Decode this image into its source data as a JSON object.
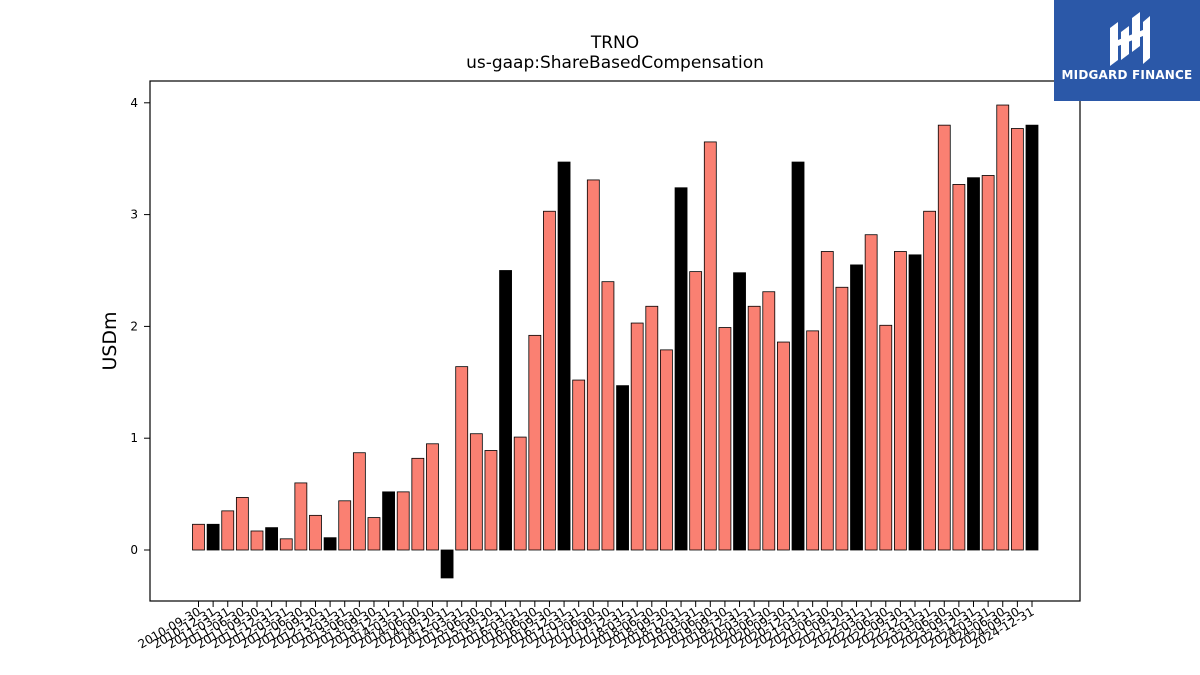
{
  "brand": {
    "name": "MIDGARD FINANCE",
    "bg_color": "#2b58a8",
    "icon": "midgard-logo-icon"
  },
  "chart_data": {
    "type": "bar",
    "title": "TRNO",
    "subtitle": "us-gaap:ShareBasedCompensation",
    "xlabel": "",
    "ylabel": "USDm",
    "ylim": [
      -0.45,
      4.2
    ],
    "yticks": [
      0,
      1,
      2,
      3,
      4
    ],
    "grid": false,
    "legend": "none",
    "colors": {
      "quarter": "#fa8072",
      "annual": "#000000"
    },
    "categories": [
      "2010-09-30",
      "2010-12-31",
      "2011-03-31",
      "2011-06-30",
      "2011-09-30",
      "2011-12-31",
      "2012-03-31",
      "2012-06-30",
      "2012-09-30",
      "2012-12-31",
      "2013-03-31",
      "2013-06-30",
      "2013-09-30",
      "2013-12-31",
      "2014-03-31",
      "2014-06-30",
      "2014-09-30",
      "2014-12-31",
      "2015-03-31",
      "2015-06-30",
      "2015-09-30",
      "2015-12-31",
      "2016-03-31",
      "2016-06-30",
      "2016-09-30",
      "2016-12-31",
      "2017-03-31",
      "2017-06-30",
      "2017-09-30",
      "2017-12-31",
      "2018-03-31",
      "2018-06-30",
      "2018-09-30",
      "2018-12-31",
      "2019-03-31",
      "2019-06-30",
      "2019-09-30",
      "2019-12-31",
      "2020-03-31",
      "2020-06-30",
      "2020-09-30",
      "2020-12-31",
      "2021-03-31",
      "2021-06-30",
      "2021-09-30",
      "2021-12-31",
      "2022-03-31",
      "2022-06-30",
      "2022-09-30",
      "2022-12-31",
      "2023-03-31",
      "2023-06-30",
      "2023-09-30",
      "2023-12-31",
      "2024-03-31",
      "2024-06-30",
      "2024-09-30",
      "2024-12-31"
    ],
    "values": [
      0.23,
      0.23,
      0.35,
      0.47,
      0.17,
      0.2,
      0.1,
      0.6,
      0.31,
      0.11,
      0.44,
      0.87,
      0.29,
      0.52,
      0.52,
      0.82,
      0.95,
      -0.25,
      1.64,
      1.04,
      0.89,
      2.5,
      1.01,
      1.92,
      3.03,
      3.47,
      1.52,
      3.31,
      2.4,
      1.47,
      2.03,
      2.18,
      1.79,
      3.24,
      2.49,
      3.65,
      1.99,
      2.48,
      2.18,
      2.31,
      1.86,
      3.47,
      1.96,
      2.67,
      2.35,
      2.55,
      2.82,
      2.01,
      2.67,
      2.64,
      3.03,
      3.8,
      3.27,
      3.33,
      3.35,
      3.98,
      3.77,
      3.8
    ],
    "bar_types": [
      "quarter",
      "annual",
      "quarter",
      "quarter",
      "quarter",
      "annual",
      "quarter",
      "quarter",
      "quarter",
      "annual",
      "quarter",
      "quarter",
      "quarter",
      "annual",
      "quarter",
      "quarter",
      "quarter",
      "annual",
      "quarter",
      "quarter",
      "quarter",
      "annual",
      "quarter",
      "quarter",
      "quarter",
      "annual",
      "quarter",
      "quarter",
      "quarter",
      "annual",
      "quarter",
      "quarter",
      "quarter",
      "annual",
      "quarter",
      "quarter",
      "quarter",
      "annual",
      "quarter",
      "quarter",
      "quarter",
      "annual",
      "quarter",
      "quarter",
      "quarter",
      "annual",
      "quarter",
      "quarter",
      "quarter",
      "annual",
      "quarter",
      "quarter",
      "quarter",
      "annual",
      "quarter",
      "quarter",
      "quarter",
      "annual"
    ]
  }
}
